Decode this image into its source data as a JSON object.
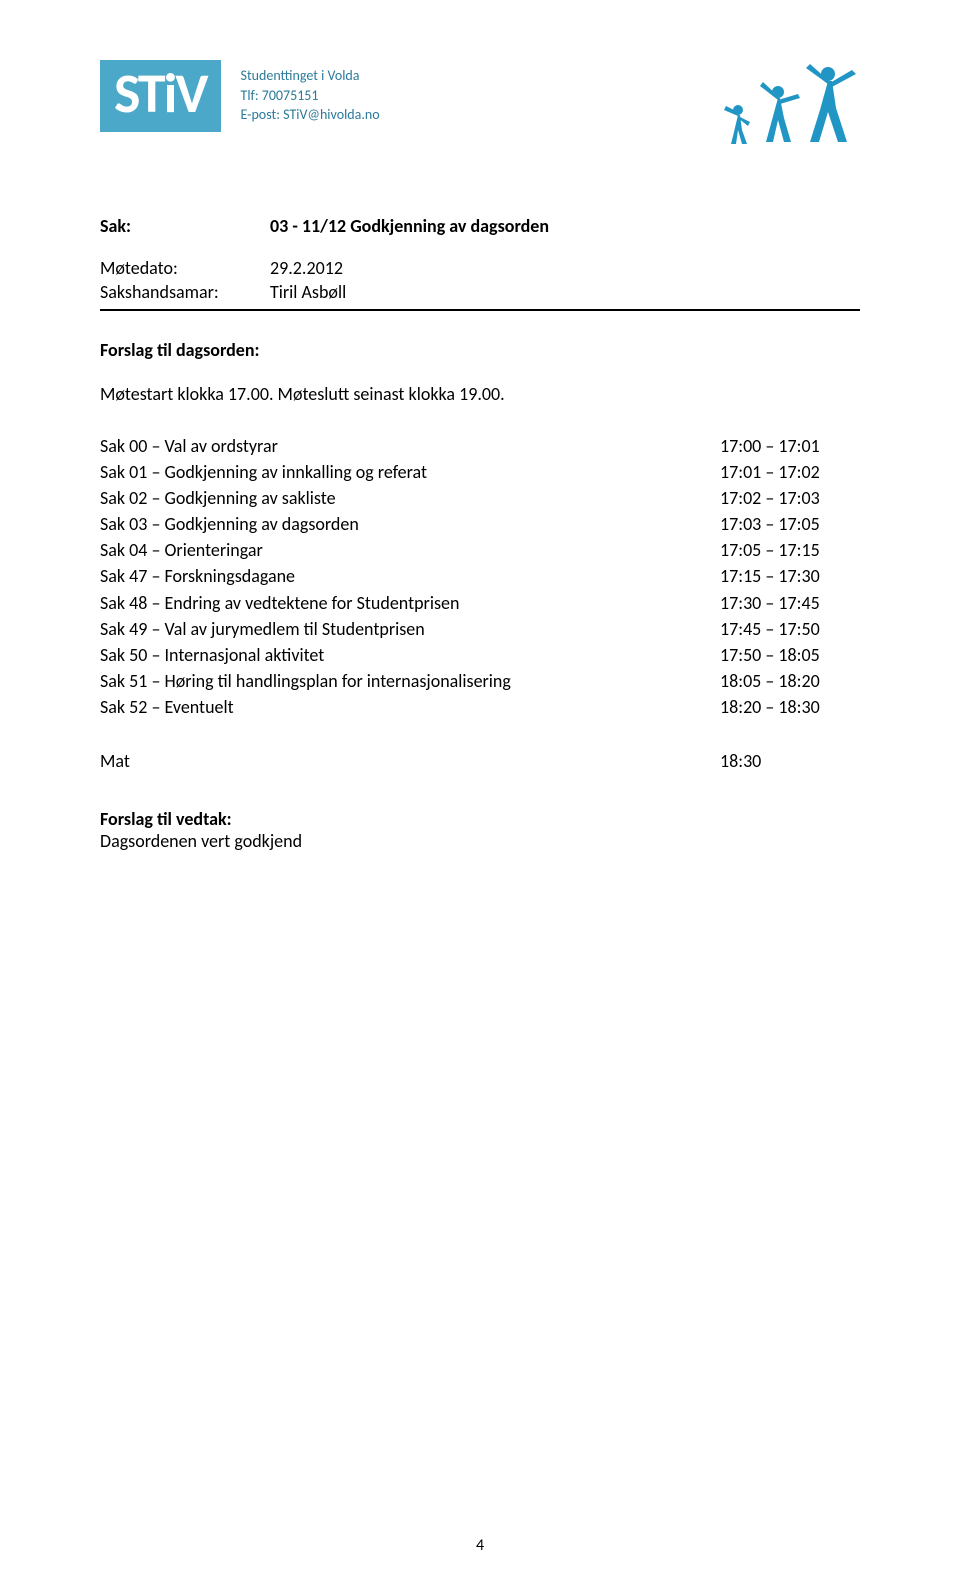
{
  "header": {
    "logo_text": "STiV",
    "logo_bg": "#4ba8c9",
    "logo_fg": "#ffffff",
    "org_name": "Studenttinget i Volda",
    "org_phone": "Tlf: 70075151",
    "org_email": "E-post: STiV@hivolda.no",
    "org_text_color": "#2b7a99",
    "figure_color": "#2196c4"
  },
  "meta": {
    "sak_label": "Sak:",
    "sak_value": "03 - 11/12 Godkjenning av dagsorden",
    "motedato_label": "Møtedato:",
    "motedato_value": "29.2.2012",
    "sakshandsamar_label": "Sakshandsamar:",
    "sakshandsamar_value": "Tiril Asbøll"
  },
  "intro": {
    "forslag_label": "Forslag til dagsorden:",
    "start_text": "Møtestart klokka 17.00. Møteslutt seinast klokka 19.00."
  },
  "agenda": [
    {
      "label": "Sak 00 – Val av ordstyrar",
      "time": "17:00 – 17:01"
    },
    {
      "label": "Sak 01 – Godkjenning av innkalling og referat",
      "time": "17:01 – 17:02"
    },
    {
      "label": "Sak 02 – Godkjenning av sakliste",
      "time": "17:02 – 17:03"
    },
    {
      "label": "Sak 03 – Godkjenning av dagsorden",
      "time": "17:03 – 17:05"
    },
    {
      "label": "Sak 04 – Orienteringar",
      "time": "17:05 – 17:15"
    },
    {
      "label": "Sak 47 – Forskningsdagane",
      "time": "17:15 – 17:30"
    },
    {
      "label": "Sak 48 – Endring av vedtektene for Studentprisen",
      "time": "17:30 – 17:45"
    },
    {
      "label": "Sak 49 – Val av jurymedlem til Studentprisen",
      "time": "17:45 – 17:50"
    },
    {
      "label": "Sak 50 – Internasjonal aktivitet",
      "time": "17:50 – 18:05"
    },
    {
      "label": "Sak 51 – Høring til handlingsplan for internasjonalisering",
      "time": "18:05 – 18:20"
    },
    {
      "label": "Sak 52 – Eventuelt",
      "time": "18:20 – 18:30"
    }
  ],
  "mat": {
    "label": "Mat",
    "time": "18:30"
  },
  "vedtak": {
    "heading": "Forslag til vedtak:",
    "text": "Dagsordenen vert godkjend"
  },
  "page_number": "4"
}
